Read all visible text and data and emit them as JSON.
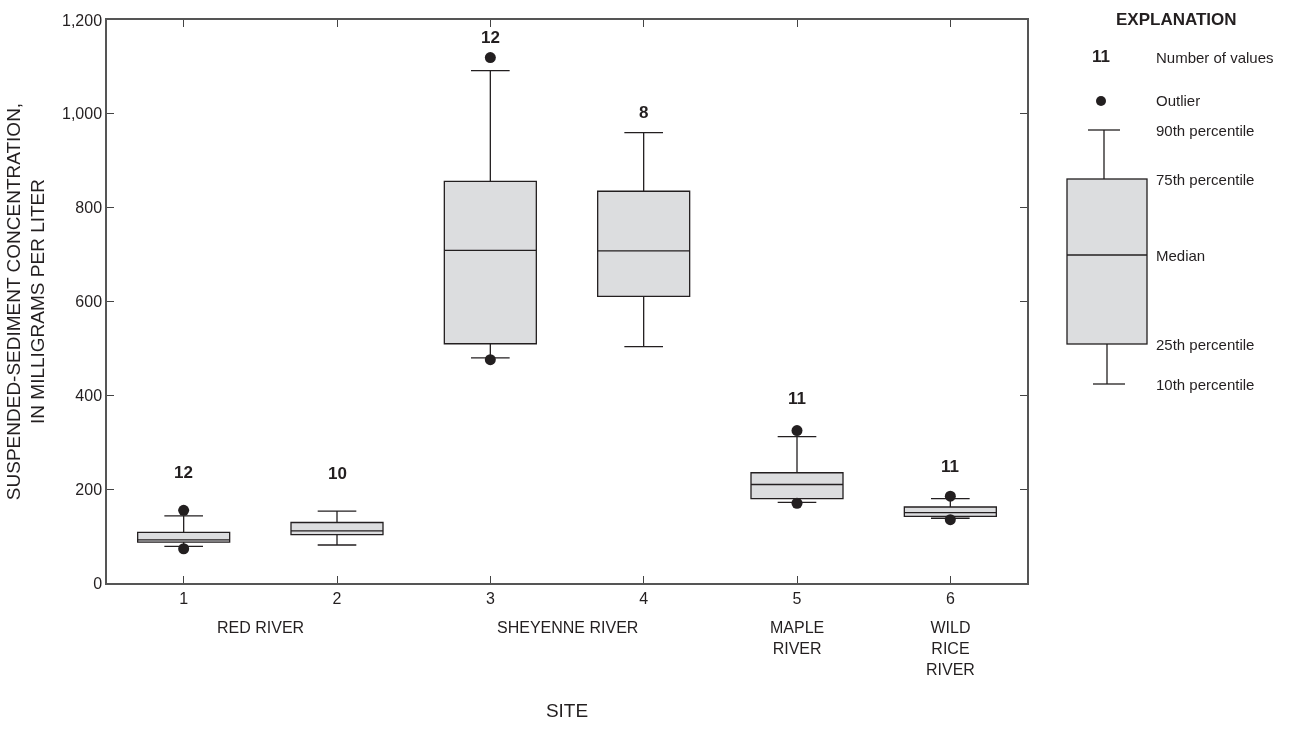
{
  "chart_data": {
    "type": "box",
    "xlabel": "SITE",
    "ylabel": "SUSPENDED-SEDIMENT CONCENTRATION,\nIN MILLIGRAMS PER LITER",
    "categories": [
      "1",
      "2",
      "3",
      "4",
      "5",
      "6"
    ],
    "color": "#dcdddf",
    "boxes": [
      {
        "low": 78,
        "q1": 87,
        "median": 92,
        "q3": 108,
        "high": 143,
        "outliers": [
          155,
          73
        ]
      },
      {
        "low": 81,
        "q1": 103,
        "median": 111,
        "q3": 129,
        "high": 153
      },
      {
        "low": 480,
        "q1": 510,
        "median": 709,
        "q3": 856,
        "high": 1092,
        "outliers": [
          1120,
          476
        ]
      },
      {
        "low": 504,
        "q1": 611,
        "median": 708,
        "q3": 835,
        "high": 960
      },
      {
        "low": 172,
        "q1": 180,
        "median": 210,
        "q3": 235,
        "high": 312,
        "outliers": [
          325,
          170
        ]
      },
      {
        "low": 138,
        "q1": 142,
        "median": 150,
        "q3": 162,
        "high": 180,
        "outliers": [
          185,
          135
        ]
      }
    ],
    "ylim": [
      0,
      1200
    ],
    "yticks": [
      0,
      200,
      400,
      600,
      800,
      {
        "value": 1000,
        "label": "1,000"
      },
      {
        "value": 1200,
        "label": "1,200"
      }
    ],
    "grid": false,
    "marker": "circle",
    "annotations": [
      "12",
      "10",
      "12",
      "8",
      "11",
      "11",
      "RED RIVER",
      "SHEYENNE RIVER",
      "MAPLE\nRIVER",
      "WILD\nRICE\nRIVER",
      "EXPLANATION",
      "11",
      "Number of values",
      "Outlier",
      "90th percentile",
      "75th percentile",
      "Median",
      "25th percentile",
      "10th percentile"
    ]
  }
}
